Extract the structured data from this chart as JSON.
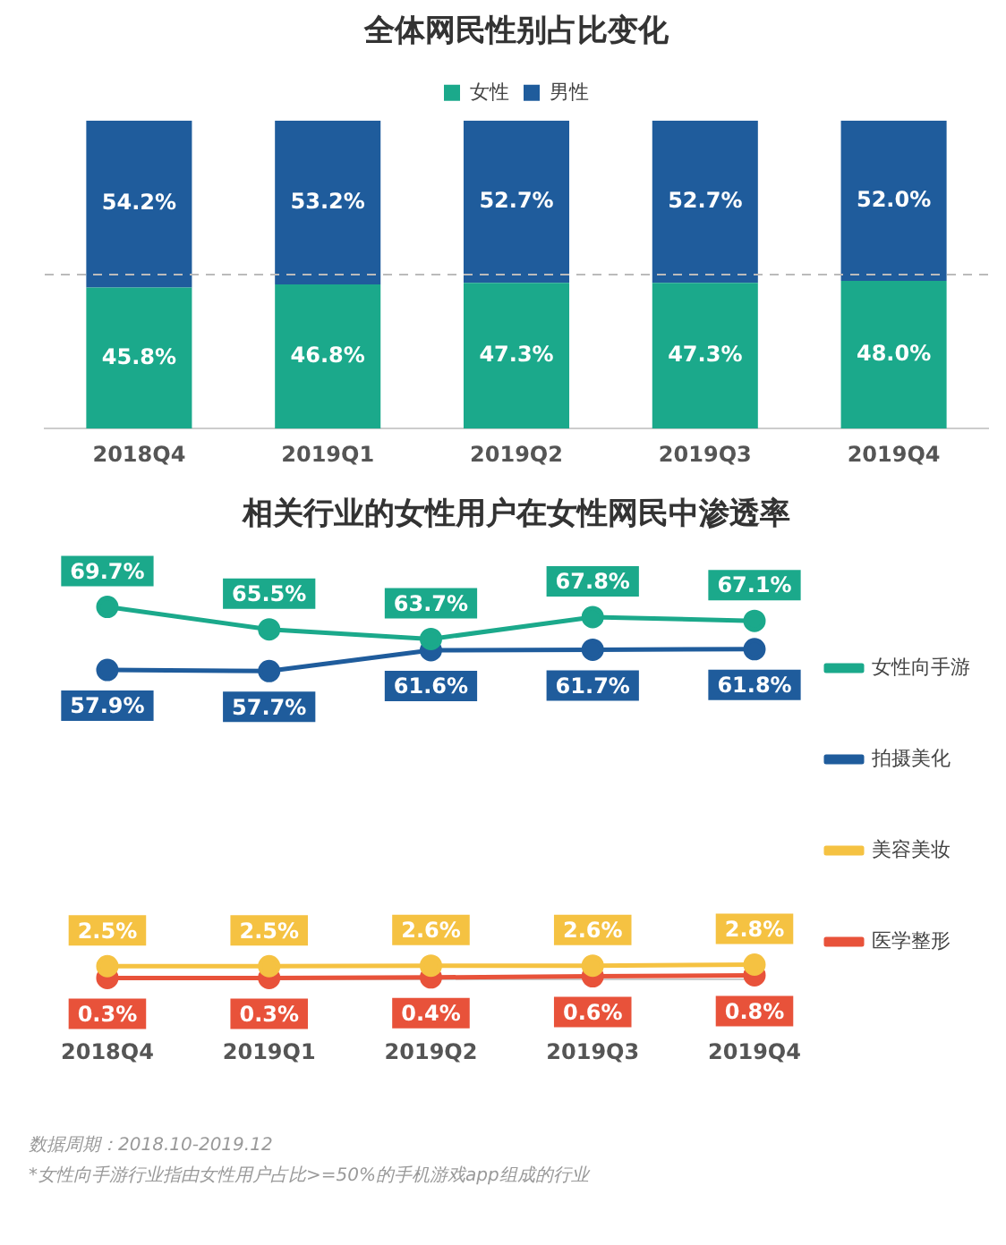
{
  "chart_data": [
    {
      "type": "bar",
      "title": "全体网民性别占比变化",
      "categories": [
        "2018Q4",
        "2019Q1",
        "2019Q2",
        "2019Q3",
        "2019Q4"
      ],
      "stacked": true,
      "legend": "top",
      "grid": false,
      "tick_labels": "x",
      "series": [
        {
          "name": "女性",
          "color": "#1ba98b",
          "values": [
            45.8,
            46.8,
            47.3,
            47.3,
            48.0
          ],
          "value_labels": [
            "45.8%",
            "46.8%",
            "47.3%",
            "47.3%",
            "48.0%"
          ]
        },
        {
          "name": "男性",
          "color": "#1f5c9c",
          "values": [
            54.2,
            53.2,
            52.7,
            52.7,
            52.0
          ],
          "value_labels": [
            "54.2%",
            "53.2%",
            "52.7%",
            "52.7%",
            "52.0%"
          ]
        }
      ],
      "ref_lines": [
        {
          "axis": "y",
          "value": 50,
          "line_style": "dashed",
          "color": "#bbbbbb"
        }
      ]
    },
    {
      "type": "line",
      "title": "相关行业的女性用户在女性网民中渗透率",
      "categories": [
        "2018Q4",
        "2019Q1",
        "2019Q2",
        "2019Q3",
        "2019Q4"
      ],
      "legend": "right",
      "grid": false,
      "tick_labels": "x",
      "marker": "circle",
      "series": [
        {
          "name": "女性向手游",
          "color": "#1ba98b",
          "values": [
            69.7,
            65.5,
            63.7,
            67.8,
            67.1
          ],
          "value_labels": [
            "69.7%",
            "65.5%",
            "63.7%",
            "67.8%",
            "67.1%"
          ]
        },
        {
          "name": "拍摄美化",
          "color": "#1f5c9c",
          "values": [
            57.9,
            57.7,
            61.6,
            61.7,
            61.8
          ],
          "value_labels": [
            "57.9%",
            "57.7%",
            "61.6%",
            "61.7%",
            "61.8%"
          ]
        },
        {
          "name": "美容美妆",
          "color": "#f5c242",
          "values": [
            2.5,
            2.5,
            2.6,
            2.6,
            2.8
          ],
          "value_labels": [
            "2.5%",
            "2.5%",
            "2.6%",
            "2.6%",
            "2.8%"
          ]
        },
        {
          "name": "医学整形",
          "color": "#e8523a",
          "values": [
            0.3,
            0.3,
            0.4,
            0.6,
            0.8
          ],
          "value_labels": [
            "0.3%",
            "0.3%",
            "0.4%",
            "0.6%",
            "0.8%"
          ]
        }
      ],
      "annotations": [
        "数据周期：2018.10-2019.12",
        "*女性向手游行业指由女性用户占比>=50%的手机游戏app组成的行业"
      ]
    }
  ]
}
